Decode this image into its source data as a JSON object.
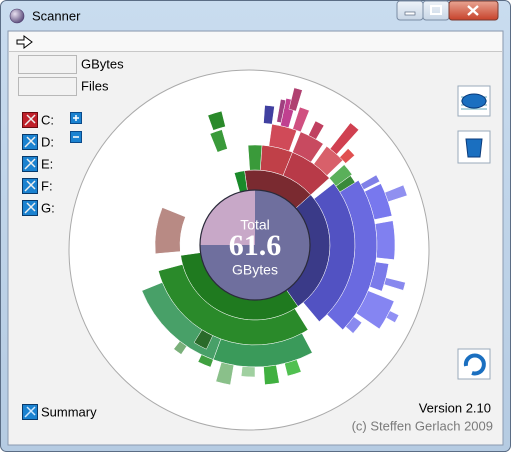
{
  "window": {
    "title": "Scanner"
  },
  "fields": [
    {
      "label": "GBytes"
    },
    {
      "label": "Files"
    }
  ],
  "drives": [
    "C:",
    "D:",
    "E:",
    "F:",
    "G:"
  ],
  "summary": "Summary",
  "center": {
    "caption": "Total",
    "value": 61.6,
    "unit": "GBytes"
  },
  "footer": {
    "version": "Version 2.10",
    "copyright": "(c) Steffen Gerlach 2009"
  }
}
